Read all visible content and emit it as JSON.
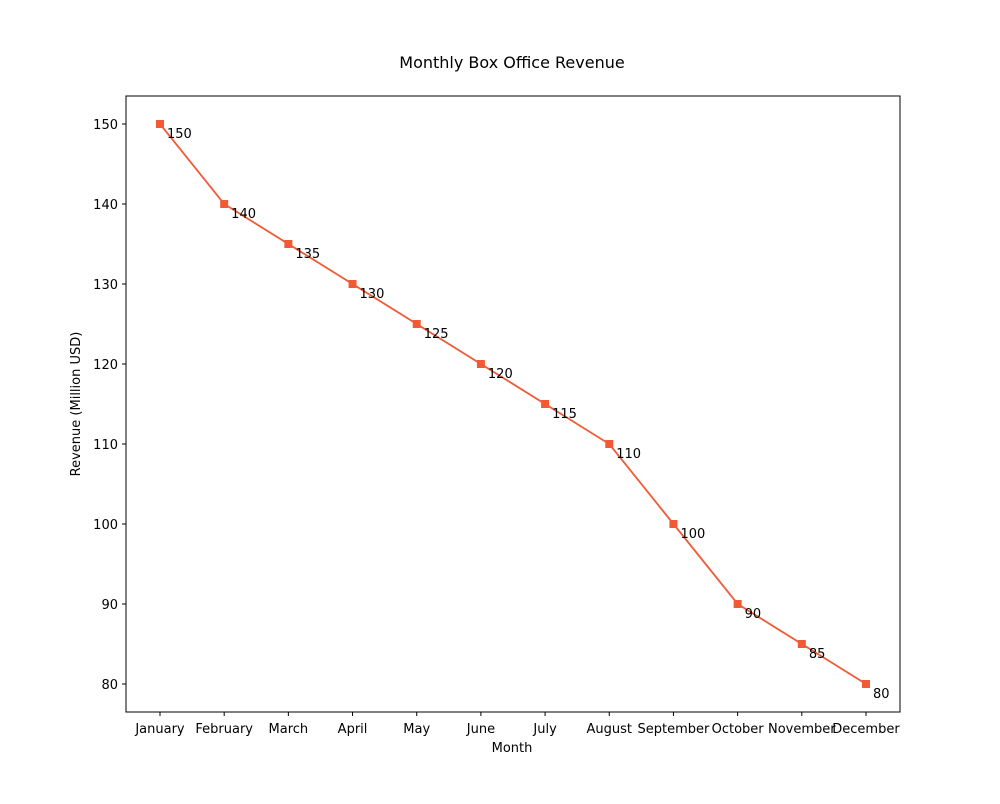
{
  "chart_data": {
    "type": "line",
    "title": "Monthly Box Office Revenue",
    "xlabel": "Month",
    "ylabel": "Revenue (Million USD)",
    "categories": [
      "January",
      "February",
      "March",
      "April",
      "May",
      "June",
      "July",
      "August",
      "September",
      "October",
      "November",
      "December"
    ],
    "series": [
      {
        "values": [
          150,
          140,
          135,
          130,
          125,
          120,
          115,
          110,
          100,
          90,
          85,
          80
        ],
        "color": "#f15a35",
        "marker": "square"
      }
    ],
    "data_labels": [
      "150",
      "140",
      "135",
      "130",
      "125",
      "120",
      "115",
      "110",
      "100",
      "90",
      "85",
      "80"
    ],
    "yticks": [
      80,
      90,
      100,
      110,
      120,
      130,
      140,
      150
    ],
    "ylim": [
      76.5,
      153.5
    ],
    "grid": false,
    "legend": false
  }
}
